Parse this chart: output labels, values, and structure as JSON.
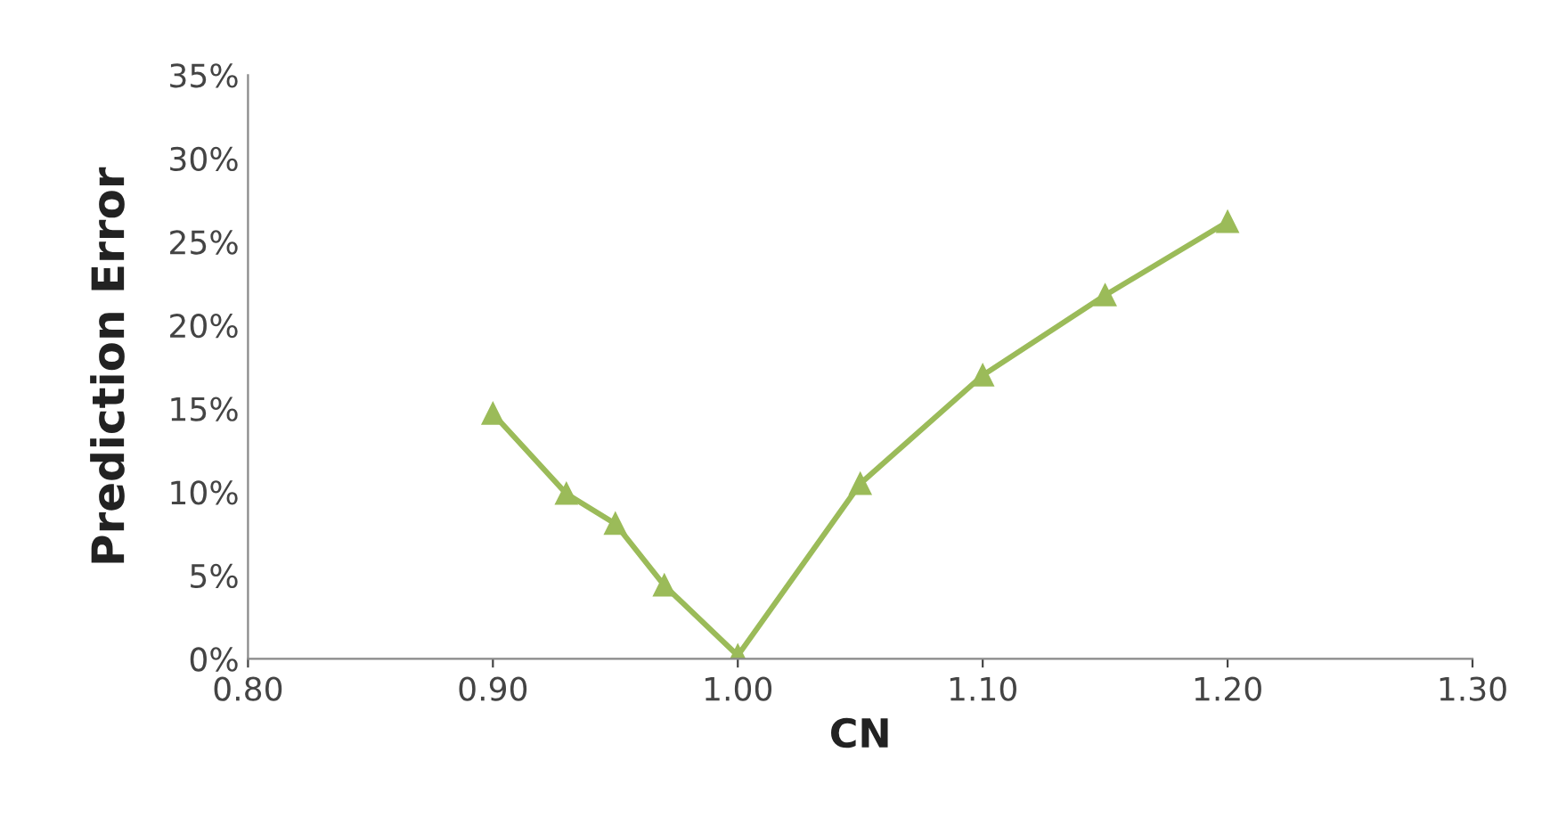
{
  "chart_data": {
    "type": "line",
    "xlabel": "CN",
    "ylabel": "Prediction Error",
    "x": [
      0.9,
      0.93,
      0.95,
      0.97,
      1.0,
      1.05,
      1.1,
      1.15,
      1.2
    ],
    "series": [
      {
        "color": "#9bbb59",
        "values": [
          14.7,
          9.9,
          8.1,
          4.4,
          0.2,
          10.5,
          17.0,
          21.8,
          26.2
        ]
      }
    ],
    "xlim": [
      0.8,
      1.3
    ],
    "xticks": [
      {
        "value": 0.8,
        "label": "0.80"
      },
      {
        "value": 0.9,
        "label": "0.90"
      },
      {
        "value": 1.0,
        "label": "1.00"
      },
      {
        "value": 1.1,
        "label": "1.10"
      },
      {
        "value": 1.2,
        "label": "1.20"
      },
      {
        "value": 1.3,
        "label": "1.30"
      }
    ],
    "ylim": [
      0,
      35
    ],
    "yticks": [
      {
        "value": 0,
        "label": "0%"
      },
      {
        "value": 5,
        "label": "5%"
      },
      {
        "value": 10,
        "label": "10%"
      },
      {
        "value": 15,
        "label": "15%"
      },
      {
        "value": 20,
        "label": "20%"
      },
      {
        "value": 25,
        "label": "25%"
      },
      {
        "value": 30,
        "label": "30%"
      },
      {
        "value": 35,
        "label": "35%"
      }
    ],
    "marker": "triangle",
    "line_style": "solid",
    "grid": false,
    "legend": false
  }
}
